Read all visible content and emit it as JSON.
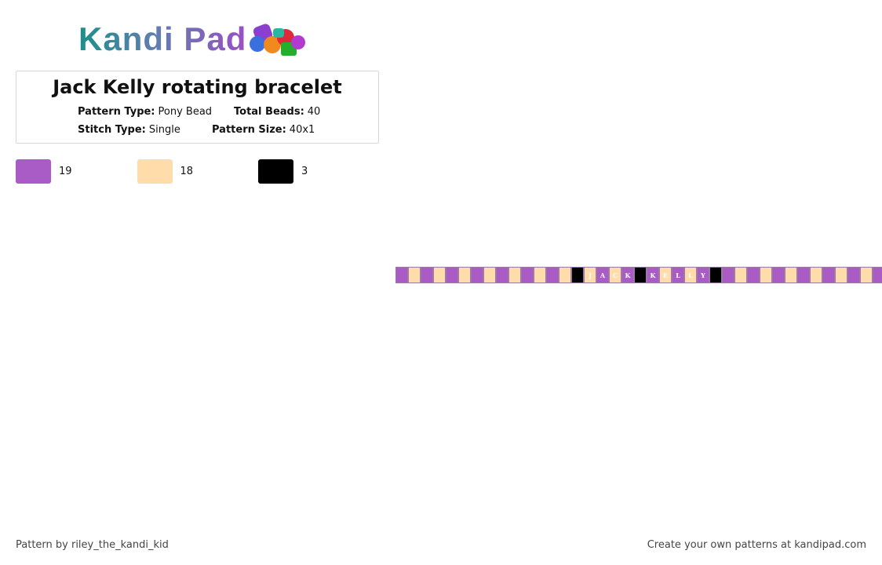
{
  "header": {
    "logo": "Kandi Pad",
    "title": "Jack Kelly rotating bracelet"
  },
  "info": {
    "pattern_type": {
      "label": "Pattern Type:",
      "value": "Pony Bead"
    },
    "total_beads": {
      "label": "Total Beads:",
      "value": 40
    },
    "stitch_type": {
      "label": "Stitch Type:",
      "value": "Single"
    },
    "pattern_size": {
      "label": "Pattern Size:",
      "value": "40x1"
    }
  },
  "palette": [
    {
      "color": "#a95cc6",
      "count": 19
    },
    {
      "color": "#ffdcaa",
      "count": 18
    },
    {
      "color": "#000000",
      "count": 3
    }
  ],
  "beads": [
    {
      "color": "#a95cc6"
    },
    {
      "color": "#ffdcaa"
    },
    {
      "color": "#a95cc6"
    },
    {
      "color": "#ffdcaa"
    },
    {
      "color": "#a95cc6"
    },
    {
      "color": "#ffdcaa"
    },
    {
      "color": "#a95cc6"
    },
    {
      "color": "#ffdcaa"
    },
    {
      "color": "#a95cc6"
    },
    {
      "color": "#ffdcaa"
    },
    {
      "color": "#a95cc6"
    },
    {
      "color": "#ffdcaa"
    },
    {
      "color": "#a95cc6"
    },
    {
      "color": "#ffdcaa"
    },
    {
      "color": "#000000"
    },
    {
      "color": "#ffdcaa",
      "letter": "J"
    },
    {
      "color": "#a95cc6",
      "letter": "A"
    },
    {
      "color": "#ffdcaa",
      "letter": "C"
    },
    {
      "color": "#a95cc6",
      "letter": "K"
    },
    {
      "color": "#000000"
    },
    {
      "color": "#a95cc6",
      "letter": "K"
    },
    {
      "color": "#ffdcaa",
      "letter": "E"
    },
    {
      "color": "#a95cc6",
      "letter": "L"
    },
    {
      "color": "#ffdcaa",
      "letter": "L"
    },
    {
      "color": "#a95cc6",
      "letter": "Y"
    },
    {
      "color": "#000000"
    },
    {
      "color": "#a95cc6"
    },
    {
      "color": "#ffdcaa"
    },
    {
      "color": "#a95cc6"
    },
    {
      "color": "#ffdcaa"
    },
    {
      "color": "#a95cc6"
    },
    {
      "color": "#ffdcaa"
    },
    {
      "color": "#a95cc6"
    },
    {
      "color": "#ffdcaa"
    },
    {
      "color": "#a95cc6"
    },
    {
      "color": "#ffdcaa"
    },
    {
      "color": "#a95cc6"
    },
    {
      "color": "#ffdcaa"
    },
    {
      "color": "#a95cc6"
    },
    {
      "color": "#ffdcaa"
    }
  ],
  "footer": {
    "left": "Pattern by riley_the_kandi_kid",
    "right": "Create your own patterns at kandipad.com"
  }
}
